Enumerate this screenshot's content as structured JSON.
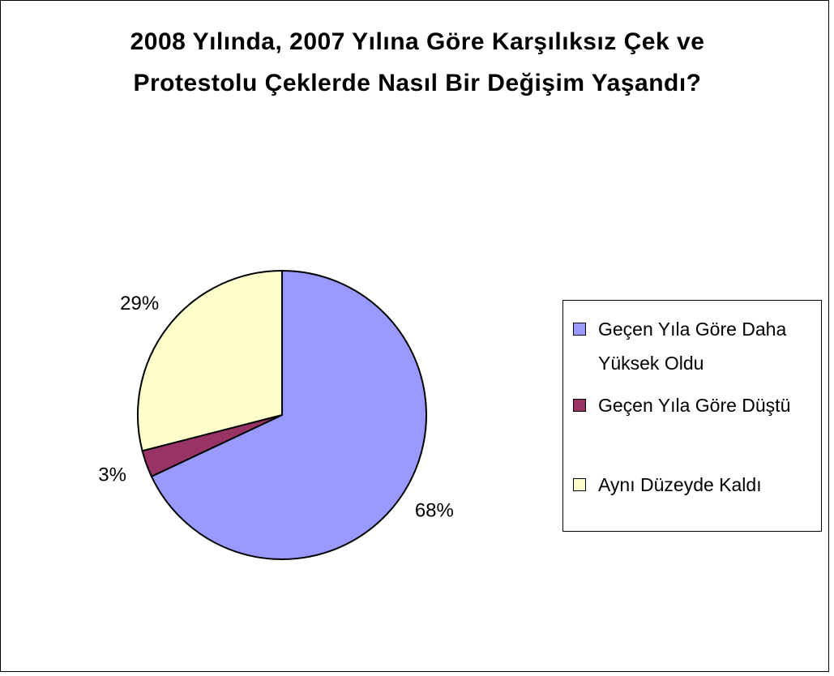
{
  "chart_data": {
    "type": "pie",
    "title": "2008 Yılında, 2007 Yılına Göre Karşılıksız Çek ve Protestolu Çeklerde Nasıl Bir Değişim Yaşandı?",
    "categories": [
      "Geçen Yıla Göre Daha Yüksek Oldu",
      "Geçen Yıla Göre Düştü",
      "Aynı Düzeyde Kaldı"
    ],
    "values": [
      68,
      3,
      29
    ],
    "value_labels": [
      "68%",
      "3%",
      "29%"
    ],
    "colors": [
      "#9999ff",
      "#993366",
      "#ffffcc"
    ],
    "legend": "right"
  }
}
